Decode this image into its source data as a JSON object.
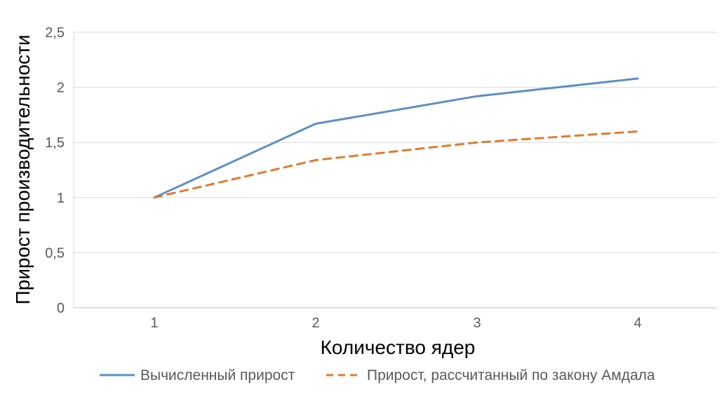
{
  "chart_data": {
    "type": "line",
    "x": [
      1,
      2,
      3,
      4
    ],
    "categories": [
      "1",
      "2",
      "3",
      "4"
    ],
    "xlabel": "Количество ядер",
    "ylabel": "Прирост производительности",
    "ylim": [
      0,
      2.5
    ],
    "yticks": [
      "0",
      "0,5",
      "1",
      "1,5",
      "2",
      "2,5"
    ],
    "ytick_values": [
      0,
      0.5,
      1,
      1.5,
      2,
      2.5
    ],
    "grid": true,
    "legend_position": "bottom",
    "series": [
      {
        "name": "Вычисленный прирост",
        "values": [
          1.0,
          1.67,
          1.92,
          2.08
        ],
        "color": "#5B8FC9",
        "style": "solid"
      },
      {
        "name": "Прирост, рассчитанный по закону Амдала",
        "values": [
          1.0,
          1.34,
          1.5,
          1.6
        ],
        "color": "#E07B2E",
        "style": "dashed"
      }
    ]
  }
}
